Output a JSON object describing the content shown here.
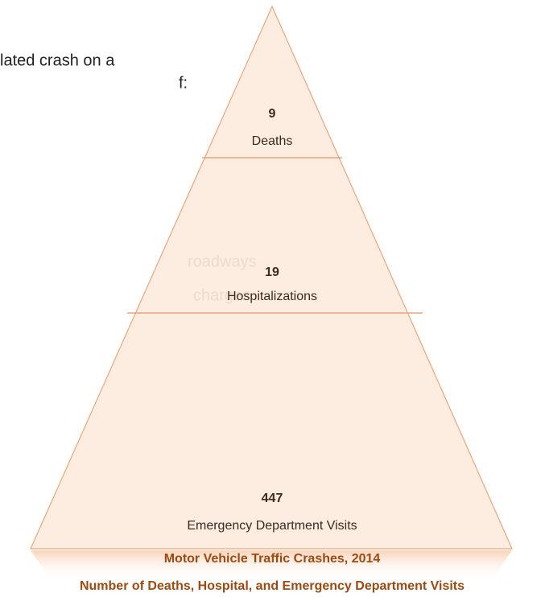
{
  "side_text": [
    "lated crash on a",
    "f:",
    "roadways",
    "charges"
  ],
  "pyramid": {
    "levels": [
      {
        "value": "9",
        "label": "Deaths"
      },
      {
        "value": "19",
        "label": "Hospitalizations"
      },
      {
        "value": "447",
        "label": "Emergency Department Visits"
      }
    ]
  },
  "caption": {
    "title": "Motor Vehicle Traffic Crashes, 2014",
    "subtitle": "Number of Deaths, Hospital, and Emergency Department Visits"
  }
}
